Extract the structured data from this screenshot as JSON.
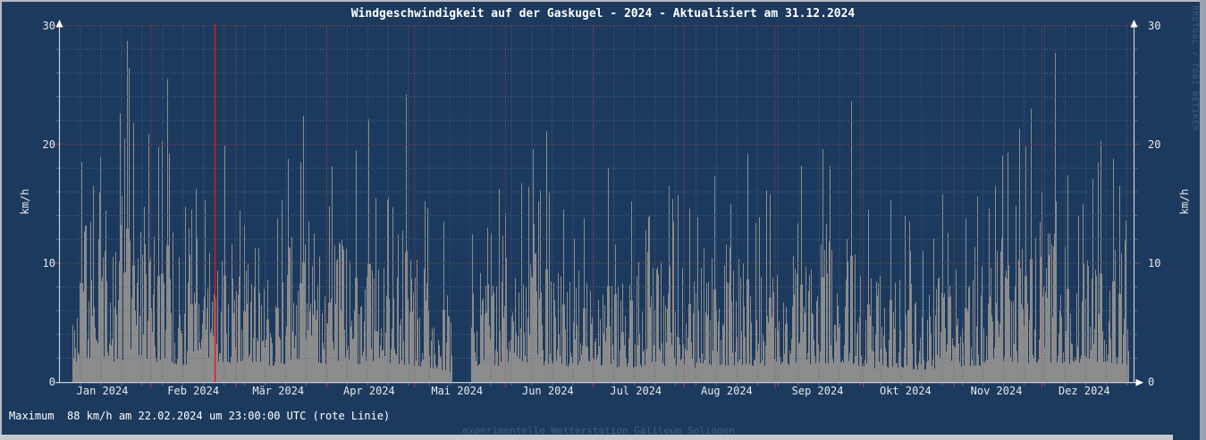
{
  "title": "Windgeschwindigkeit auf der Gaskugel - 2024 - Aktualisiert am 31.12.2024",
  "watermark": "RRDTOOL / TOBI OETIKER",
  "footer": {
    "max_line": "Maximum  88 km/h am 22.02.2024 um 23:00:00 UTC (rote Linie)",
    "station_line": "experimentelle Wetterstation Galileum Solingen"
  },
  "colors": {
    "background": "#1c3a5e",
    "area_fill": "#8c8c8c",
    "grid_minor": "#54708f",
    "grid_major": "#a84450",
    "axis": "#c9ced4",
    "arrow": "#ffffff",
    "max_event_line": "#e8111c",
    "text": "#ffffff",
    "muted_text": "#3d5f80",
    "border_light": "#b6bac0",
    "border_bottom": "#c6cacf"
  },
  "chart_data": {
    "type": "area",
    "title": "Windgeschwindigkeit auf der Gaskugel - 2024 - Aktualisiert am 31.12.2024",
    "ylabel_left": "km/h",
    "ylabel_right": "km/h",
    "ylim": [
      0,
      30
    ],
    "y_major_ticks": [
      0,
      10,
      20,
      30
    ],
    "y_minor_step_kmh": 2,
    "grid": {
      "horizontal_major": "dotted-red",
      "horizontal_minor": "dotted-slate",
      "vertical_major": "months-dotted-red",
      "vertical_minor": "weekly-dotted-slate",
      "legend": "none"
    },
    "x_axis": {
      "unit": "day_of_year_2024",
      "range_days": [
        0,
        366
      ],
      "minor_grid_step_days": 7,
      "month_labels": [
        {
          "label": "Jan 2024",
          "start_day": 0
        },
        {
          "label": "Feb 2024",
          "start_day": 31
        },
        {
          "label": "Mär 2024",
          "start_day": 60
        },
        {
          "label": "Apr 2024",
          "start_day": 91
        },
        {
          "label": "Mai 2024",
          "start_day": 121
        },
        {
          "label": "Jun 2024",
          "start_day": 152
        },
        {
          "label": "Jul 2024",
          "start_day": 182
        },
        {
          "label": "Aug 2024",
          "start_day": 213
        },
        {
          "label": "Sep 2024",
          "start_day": 244
        },
        {
          "label": "Okt 2024",
          "start_day": 274
        },
        {
          "label": "Nov 2024",
          "start_day": 305
        },
        {
          "label": "Dez 2024",
          "start_day": 335
        }
      ]
    },
    "max_event": {
      "value_kmh": 88,
      "date": "22.02.2024 23:00:00 UTC",
      "day_of_year": 52.96,
      "marker": "rote Linie"
    },
    "data_gaps_days": [
      [
        0,
        4.4
      ],
      [
        133.8,
        140.4
      ],
      [
        364.9,
        366
      ]
    ],
    "series": [
      {
        "name": "Windgeschwindigkeit",
        "unit": "km/h",
        "weekly_mean_kmh": [
          7,
          9,
          10.5,
          7.5,
          10,
          8,
          7,
          8.5,
          8,
          7,
          6.5,
          7.5,
          9,
          7.5,
          8,
          7,
          8,
          7,
          6,
          4,
          6,
          6.5,
          7,
          7.5,
          6.5,
          6,
          7,
          6,
          6,
          7,
          6.5,
          6,
          7,
          7,
          6.5,
          7,
          7,
          7.5,
          8,
          6,
          5.5,
          6,
          5,
          6,
          6.5,
          7,
          8.5,
          7.5,
          8.5,
          7,
          8,
          8.5,
          6.5
        ],
        "peaks_day_value": [
          [
            7.6,
            18.5
          ],
          [
            14,
            18.9
          ],
          [
            20.6,
            22.6
          ],
          [
            22.2,
            20.5
          ],
          [
            23,
            28.7
          ],
          [
            23.7,
            26.4
          ],
          [
            25.2,
            21.8
          ],
          [
            33.8,
            19.8
          ],
          [
            34.9,
            20.3
          ],
          [
            36.6,
            25.5
          ],
          [
            37.4,
            19.2
          ],
          [
            45,
            14.5
          ],
          [
            53,
            15.8
          ],
          [
            56.4,
            19.9
          ],
          [
            63,
            13.2
          ],
          [
            74.4,
            13.8
          ],
          [
            82.3,
            18.5
          ],
          [
            83.2,
            22.4
          ],
          [
            92,
            14.8
          ],
          [
            101,
            19.5
          ],
          [
            105.4,
            22.1
          ],
          [
            112,
            15.5
          ],
          [
            118.2,
            24.2
          ],
          [
            124.6,
            15.2
          ],
          [
            131,
            13.5
          ],
          [
            146,
            13
          ],
          [
            152,
            14.2
          ],
          [
            161.5,
            19.6
          ],
          [
            166.1,
            21.1
          ],
          [
            172,
            14.5
          ],
          [
            179,
            13.8
          ],
          [
            187.1,
            18.0
          ],
          [
            195,
            15.2
          ],
          [
            201,
            14
          ],
          [
            208,
            16.5
          ],
          [
            215,
            14.6
          ],
          [
            223.4,
            17.3
          ],
          [
            229,
            15
          ],
          [
            234.7,
            19.2
          ],
          [
            242.3,
            15.8
          ],
          [
            253,
            18.2
          ],
          [
            260.3,
            19.6
          ],
          [
            270,
            23.6
          ],
          [
            276,
            14.5
          ],
          [
            283.4,
            15.3
          ],
          [
            290,
            13.5
          ],
          [
            301.1,
            15.8
          ],
          [
            309,
            13.8
          ],
          [
            317,
            14.6
          ],
          [
            323.3,
            19.3
          ],
          [
            327.3,
            21.3
          ],
          [
            329.4,
            19.8
          ],
          [
            331.3,
            23.0
          ],
          [
            335,
            16
          ],
          [
            339.5,
            27.7
          ],
          [
            344,
            17.4
          ],
          [
            349,
            15
          ],
          [
            355.3,
            20.3
          ],
          [
            359.3,
            18.8
          ],
          [
            361.5,
            16.5
          ],
          [
            363.3,
            11.9
          ]
        ]
      }
    ],
    "noise_seed": 42
  }
}
